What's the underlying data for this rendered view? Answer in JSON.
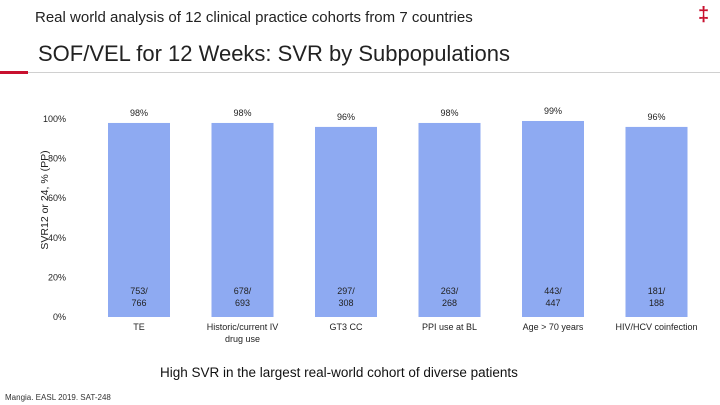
{
  "header": {
    "top_title": "Real world analysis of 12 clinical practice cohorts from 7 countries",
    "main_title": "SOF/VEL for 12 Weeks: SVR by Subpopulations",
    "dagger": "‡"
  },
  "footnote": "High SVR in the largest real-world cohort of diverse patients",
  "citation": "Mangia. EASL 2019. SAT-248",
  "colors": {
    "bar": "#8eaaf2",
    "accent": "#c8102e"
  },
  "chart_data": {
    "type": "bar",
    "title": "",
    "ylabel": "SVR12 or 24, % (PP)",
    "xlabel": "",
    "ylim": [
      0,
      100
    ],
    "yticks": [
      0,
      20,
      40,
      60,
      80,
      100
    ],
    "ytick_labels": [
      "0%",
      "20%",
      "40%",
      "60%",
      "80%",
      "100%"
    ],
    "categories": [
      "TE",
      "Historic/current IV drug use",
      "GT3 CC",
      "PPI use at BL",
      "Age > 70 years",
      "HIV/HCV coinfection"
    ],
    "category_lines": [
      [
        "TE"
      ],
      [
        "Historic/current IV",
        "drug use"
      ],
      [
        "GT3 CC"
      ],
      [
        "PPI use at BL"
      ],
      [
        "Age > 70 years"
      ],
      [
        "HIV/HCV coinfection"
      ]
    ],
    "values": [
      98,
      98,
      96,
      98,
      99,
      96
    ],
    "value_labels": [
      "98%",
      "98%",
      "96%",
      "98%",
      "99%",
      "96%"
    ],
    "count_labels": [
      [
        "753/",
        "766"
      ],
      [
        "678/",
        "693"
      ],
      [
        "297/",
        "308"
      ],
      [
        "263/",
        "268"
      ],
      [
        "443/",
        "447"
      ],
      [
        "181/",
        "188"
      ]
    ],
    "grid": false,
    "legend": "none"
  }
}
